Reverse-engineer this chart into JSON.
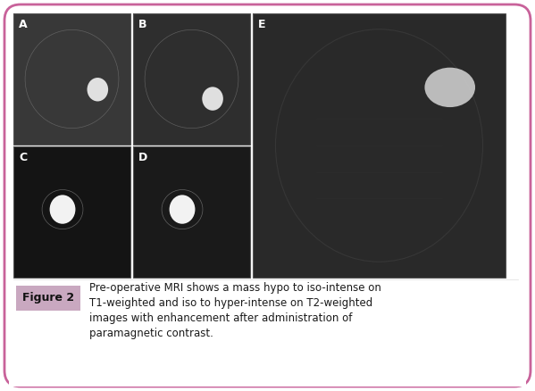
{
  "title": "Figure 2",
  "caption_lines": [
    "Pre-operative MRI shows a mass hypo to iso-intense on",
    "T1-weighted and iso to hyper-intense on T2-weighted",
    "images with enhancement after administration of",
    "paramagnetic contrast."
  ],
  "background_color": "#ffffff",
  "border_color": "#c8629a",
  "figure_label_bg": "#c8a0b8",
  "figure_label_text": "#1a1a1a",
  "caption_text_color": "#1a1a1a",
  "panel_labels": [
    "A",
    "B",
    "C",
    "D",
    "E"
  ],
  "panel_label_color": "#ffffff",
  "image_bg_colors": {
    "A": "#3a3a3a",
    "B": "#2a2a2a",
    "C": "#111111",
    "D": "#151515",
    "E": "#2a2a2a"
  }
}
